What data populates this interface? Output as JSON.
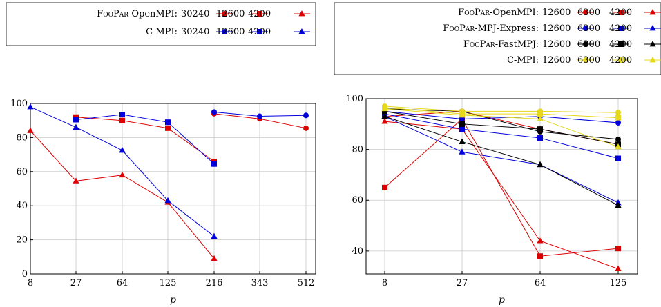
{
  "chart_data": [
    {
      "type": "line",
      "title": "",
      "xlabel": "p",
      "ylabel": "",
      "x": [
        8,
        27,
        64,
        125,
        216,
        343,
        512
      ],
      "xscale": "log",
      "ylim": [
        0,
        100
      ],
      "yticks": [
        0,
        20,
        40,
        60,
        80,
        100
      ],
      "grid": true,
      "legend_position": "top-left",
      "legend_groups": [
        {
          "prefix_sc": "FooPar",
          "prefix_rest": "-OpenMPI:",
          "color": "#dd0000",
          "entries": [
            {
              "label": "30240",
              "marker": "circle"
            },
            {
              "label": "12600",
              "marker": "square"
            },
            {
              "label": "4200",
              "marker": "triangle"
            }
          ]
        },
        {
          "prefix_sc": "",
          "prefix_rest": "C-MPI:",
          "color": "#0000dd",
          "entries": [
            {
              "label": "30240",
              "marker": "circle"
            },
            {
              "label": "12600",
              "marker": "square"
            },
            {
              "label": "4200",
              "marker": "triangle"
            }
          ]
        }
      ],
      "series": [
        {
          "group": 0,
          "entry": 0,
          "color": "#dd0000",
          "marker": "circle",
          "points": [
            [
              216,
              94
            ],
            [
              343,
              91
            ],
            [
              512,
              85.5
            ]
          ]
        },
        {
          "group": 0,
          "entry": 1,
          "color": "#dd0000",
          "marker": "square",
          "points": [
            [
              27,
              92
            ],
            [
              64,
              90
            ],
            [
              125,
              85.5
            ],
            [
              216,
              66
            ]
          ]
        },
        {
          "group": 0,
          "entry": 2,
          "color": "#dd0000",
          "marker": "triangle",
          "points": [
            [
              8,
              84
            ],
            [
              27,
              54.5
            ],
            [
              64,
              58
            ],
            [
              125,
              42
            ],
            [
              216,
              9
            ]
          ]
        },
        {
          "group": 1,
          "entry": 0,
          "color": "#0000dd",
          "marker": "circle",
          "points": [
            [
              216,
              95
            ],
            [
              343,
              92.5
            ],
            [
              512,
              93
            ]
          ]
        },
        {
          "group": 1,
          "entry": 1,
          "color": "#0000dd",
          "marker": "square",
          "points": [
            [
              27,
              90.5
            ],
            [
              64,
              93.5
            ],
            [
              125,
              89
            ],
            [
              216,
              64.5
            ]
          ]
        },
        {
          "group": 1,
          "entry": 2,
          "color": "#0000dd",
          "marker": "triangle",
          "points": [
            [
              8,
              98
            ],
            [
              27,
              86
            ],
            [
              64,
              72.5
            ],
            [
              125,
              43
            ],
            [
              216,
              22
            ]
          ]
        }
      ]
    },
    {
      "type": "line",
      "title": "",
      "xlabel": "p",
      "ylabel": "",
      "x": [
        8,
        27,
        64,
        125
      ],
      "xscale": "log",
      "ylim": [
        31,
        100
      ],
      "yticks": [
        40,
        60,
        80,
        100
      ],
      "grid": true,
      "legend_position": "top-right",
      "legend_groups": [
        {
          "prefix_sc": "FooPar",
          "prefix_rest": "-OpenMPI:",
          "color": "#dd0000",
          "entries": [
            {
              "label": "12600",
              "marker": "circle"
            },
            {
              "label": "6300",
              "marker": "square"
            },
            {
              "label": "4200",
              "marker": "triangle"
            }
          ]
        },
        {
          "prefix_sc": "FooPar",
          "prefix_rest": "-MPJ-Express:",
          "color": "#0000dd",
          "entries": [
            {
              "label": "12600",
              "marker": "circle"
            },
            {
              "label": "6300",
              "marker": "square"
            },
            {
              "label": "4200",
              "marker": "triangle"
            }
          ]
        },
        {
          "prefix_sc": "FooPar",
          "prefix_rest": "-FastMPJ:",
          "color": "#000000",
          "entries": [
            {
              "label": "12600",
              "marker": "circle"
            },
            {
              "label": "6300",
              "marker": "square"
            },
            {
              "label": "4200",
              "marker": "triangle"
            }
          ]
        },
        {
          "prefix_sc": "",
          "prefix_rest": "C-MPI:",
          "color": "#e6d81a",
          "entries": [
            {
              "label": "12600",
              "marker": "circle"
            },
            {
              "label": "6300",
              "marker": "square"
            },
            {
              "label": "4200",
              "marker": "triangle"
            }
          ]
        }
      ],
      "series": [
        {
          "group": 0,
          "entry": 0,
          "color": "#dd0000",
          "marker": "circle",
          "points": [
            [
              8,
              93
            ],
            [
              27,
              95
            ],
            [
              64,
              88
            ],
            [
              125,
              82
            ]
          ]
        },
        {
          "group": 0,
          "entry": 1,
          "color": "#dd0000",
          "marker": "square",
          "points": [
            [
              8,
              65
            ],
            [
              27,
              92
            ],
            [
              64,
              38
            ],
            [
              125,
              41
            ]
          ]
        },
        {
          "group": 0,
          "entry": 2,
          "color": "#dd0000",
          "marker": "triangle",
          "points": [
            [
              8,
              91
            ],
            [
              27,
              88
            ],
            [
              64,
              44
            ],
            [
              125,
              33
            ]
          ]
        },
        {
          "group": 1,
          "entry": 0,
          "color": "#0000dd",
          "marker": "circle",
          "points": [
            [
              8,
              95
            ],
            [
              27,
              92
            ],
            [
              64,
              93
            ],
            [
              125,
              90.5
            ]
          ]
        },
        {
          "group": 1,
          "entry": 1,
          "color": "#0000dd",
          "marker": "square",
          "points": [
            [
              8,
              94
            ],
            [
              27,
              88
            ],
            [
              64,
              84.5
            ],
            [
              125,
              76.5
            ]
          ]
        },
        {
          "group": 1,
          "entry": 2,
          "color": "#0000dd",
          "marker": "triangle",
          "points": [
            [
              8,
              93
            ],
            [
              27,
              79
            ],
            [
              64,
              74
            ],
            [
              125,
              59
            ]
          ]
        },
        {
          "group": 2,
          "entry": 0,
          "color": "#000000",
          "marker": "circle",
          "points": [
            [
              8,
              96
            ],
            [
              27,
              95
            ],
            [
              64,
              87
            ],
            [
              125,
              84
            ]
          ]
        },
        {
          "group": 2,
          "entry": 1,
          "color": "#000000",
          "marker": "square",
          "points": [
            [
              8,
              95
            ],
            [
              27,
              90
            ],
            [
              64,
              88
            ],
            [
              125,
              82
            ]
          ]
        },
        {
          "group": 2,
          "entry": 2,
          "color": "#000000",
          "marker": "triangle",
          "points": [
            [
              8,
              93
            ],
            [
              27,
              83
            ],
            [
              64,
              74
            ],
            [
              125,
              58
            ]
          ]
        },
        {
          "group": 3,
          "entry": 0,
          "color": "#e6d81a",
          "marker": "circle",
          "points": [
            [
              8,
              97
            ],
            [
              27,
              95
            ],
            [
              64,
              95
            ],
            [
              125,
              94.5
            ]
          ]
        },
        {
          "group": 3,
          "entry": 1,
          "color": "#e6d81a",
          "marker": "square",
          "points": [
            [
              8,
              96.5
            ],
            [
              27,
              94
            ],
            [
              64,
              94
            ],
            [
              125,
              92.5
            ]
          ]
        },
        {
          "group": 3,
          "entry": 2,
          "color": "#e6d81a",
          "marker": "triangle",
          "points": [
            [
              8,
              96
            ],
            [
              27,
              93.5
            ],
            [
              64,
              92
            ],
            [
              125,
              81
            ]
          ]
        }
      ]
    }
  ]
}
